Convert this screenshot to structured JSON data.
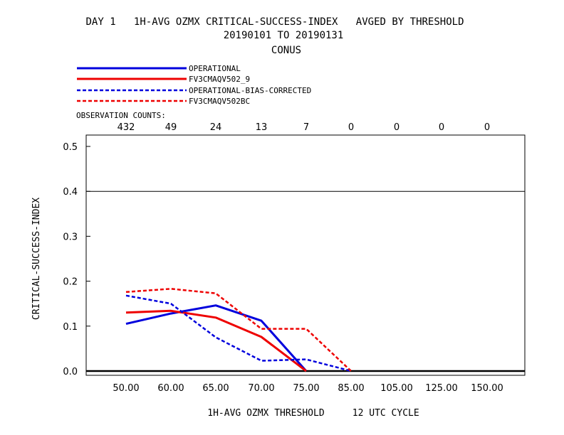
{
  "chart_data": {
    "type": "line",
    "title_line1": "DAY 1   1H-AVG OZMX CRITICAL-SUCCESS-INDEX   AVGED BY THRESHOLD",
    "title_line2": "20190101 TO 20190131",
    "title_line3": "CONUS",
    "xlabel": "1H-AVG OZMX THRESHOLD     12 UTC CYCLE",
    "ylabel": "CRITICAL-SUCCESS-INDEX",
    "ylim": [
      0.0,
      0.52
    ],
    "yticks": [
      "0.0",
      "0.1",
      "0.2",
      "0.3",
      "0.4",
      "0.5"
    ],
    "reference_line_y": 0.4,
    "categories": [
      "50.00",
      "60.00",
      "65.00",
      "70.00",
      "75.00",
      "85.00",
      "105.00",
      "125.00",
      "150.00"
    ],
    "observation_counts_label": "OBSERVATION COUNTS:",
    "observation_counts": [
      "432",
      "49",
      "24",
      "13",
      "7",
      "0",
      "0",
      "0",
      "0"
    ],
    "legend_placement": "top-left",
    "series": [
      {
        "name": "OPERATIONAL",
        "color": "#0000dd",
        "dash": "solid",
        "values": [
          0.105,
          0.128,
          0.146,
          0.112,
          0.0,
          null,
          null,
          null,
          null
        ]
      },
      {
        "name": "FV3CMAQV502_9",
        "color": "#ee0000",
        "dash": "solid",
        "values": [
          0.13,
          0.134,
          0.119,
          0.076,
          0.0,
          null,
          null,
          null,
          null
        ]
      },
      {
        "name": "OPERATIONAL-BIAS-CORRECTED",
        "color": "#0000dd",
        "dash": "dashed",
        "values": [
          0.168,
          0.15,
          0.075,
          0.023,
          0.026,
          0.0,
          null,
          null,
          null
        ]
      },
      {
        "name": "FV3CMAQV502BC",
        "color": "#ee0000",
        "dash": "dashed",
        "values": [
          0.176,
          0.183,
          0.173,
          0.094,
          0.094,
          0.0,
          null,
          null,
          null
        ]
      }
    ]
  }
}
